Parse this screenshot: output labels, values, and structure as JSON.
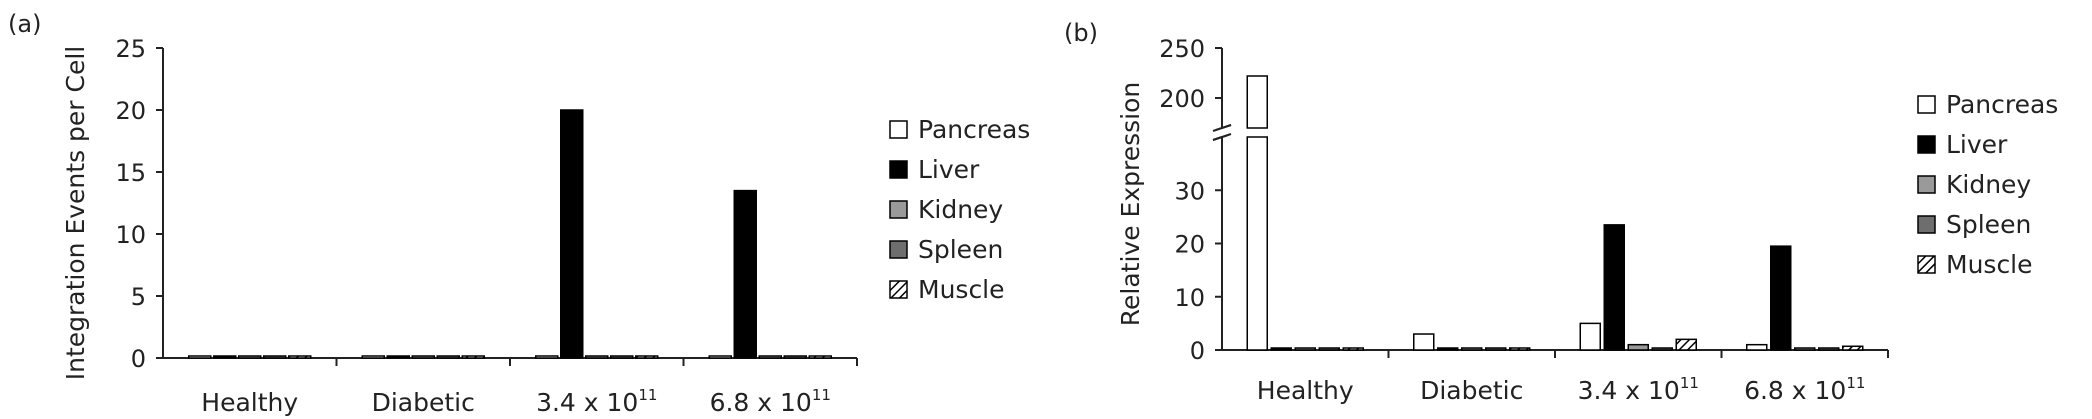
{
  "chart_data": [
    {
      "type": "bar",
      "panel_label": "(a)",
      "title": "",
      "ylabel": "Integration Events per Cell",
      "ylim": [
        0,
        25
      ],
      "yticks": [
        0,
        5,
        10,
        15,
        20,
        25
      ],
      "categories": [
        {
          "base": "Healthy",
          "exp": ""
        },
        {
          "base": "Diabetic",
          "exp": ""
        },
        {
          "base": "3.4 x 10",
          "exp": "11"
        },
        {
          "base": "6.8 x 10",
          "exp": "11"
        }
      ],
      "legend_position": "right",
      "series": [
        {
          "name": "Pancreas",
          "fill": "#ffffff",
          "pattern": "none",
          "values": [
            0.1,
            0.1,
            0.1,
            0.1
          ]
        },
        {
          "name": "Liver",
          "fill": "#000000",
          "pattern": "none",
          "values": [
            0.1,
            0.1,
            20.0,
            13.5
          ]
        },
        {
          "name": "Kidney",
          "fill": "#9a9a9a",
          "pattern": "none",
          "values": [
            0.1,
            0.1,
            0.1,
            0.1
          ]
        },
        {
          "name": "Spleen",
          "fill": "#6e6e6e",
          "pattern": "none",
          "values": [
            0.1,
            0.1,
            0.1,
            0.1
          ]
        },
        {
          "name": "Muscle",
          "fill": "#ffffff",
          "pattern": "hatch",
          "values": [
            0.1,
            0.1,
            0.1,
            0.1
          ]
        }
      ]
    },
    {
      "type": "bar",
      "panel_label": "(b)",
      "title": "",
      "ylabel": "Relative Expression",
      "axis_break": true,
      "ylim_lower": [
        0,
        40
      ],
      "ylim_upper": [
        170,
        250
      ],
      "yticks_lower": [
        0,
        10,
        20,
        30
      ],
      "yticks_upper": [
        200,
        250
      ],
      "categories": [
        {
          "base": "Healthy",
          "exp": ""
        },
        {
          "base": "Diabetic",
          "exp": ""
        },
        {
          "base": "3.4 x 10",
          "exp": "11"
        },
        {
          "base": "6.8 x 10",
          "exp": "11"
        }
      ],
      "legend_position": "right",
      "series": [
        {
          "name": "Pancreas",
          "fill": "#ffffff",
          "pattern": "none",
          "values": [
            222,
            3,
            5,
            1
          ]
        },
        {
          "name": "Liver",
          "fill": "#000000",
          "pattern": "none",
          "values": [
            0.2,
            0.1,
            23.5,
            19.5
          ]
        },
        {
          "name": "Kidney",
          "fill": "#9a9a9a",
          "pattern": "none",
          "values": [
            0.1,
            0.1,
            1,
            0.2
          ]
        },
        {
          "name": "Spleen",
          "fill": "#6e6e6e",
          "pattern": "none",
          "values": [
            0.1,
            0.1,
            0.1,
            0.1
          ]
        },
        {
          "name": "Muscle",
          "fill": "#ffffff",
          "pattern": "hatch",
          "values": [
            0.1,
            0.1,
            2,
            0.7
          ]
        }
      ]
    }
  ]
}
